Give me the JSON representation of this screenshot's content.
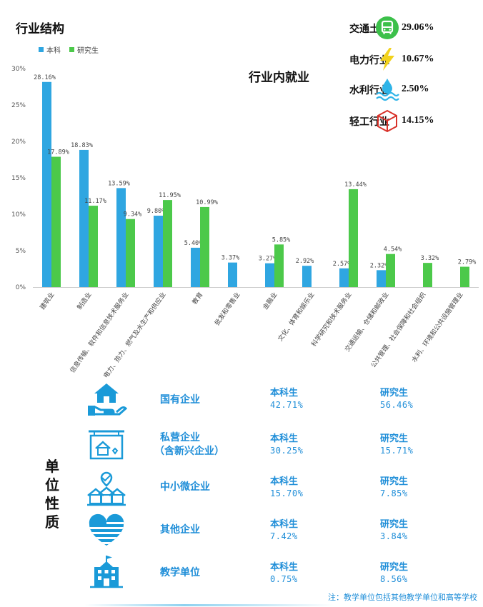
{
  "section_title": "行业结构",
  "colors": {
    "undergrad": "#2fa6e1",
    "graduate": "#4cc94a",
    "accent": "#1f8ed8",
    "axis_text": "#444444"
  },
  "chart_data": {
    "type": "bar",
    "title": "",
    "xlabel": "",
    "ylabel": "",
    "ylim": [
      0,
      30
    ],
    "yticks": [
      "0%",
      "5%",
      "10%",
      "15%",
      "20%",
      "25%",
      "30%"
    ],
    "legend": [
      "本科",
      "研究生"
    ],
    "categories": [
      "建筑业",
      "制造业",
      "信息传输、软件和信息技术服务业",
      "电力、热力、燃气及水生产和供应业",
      "教育",
      "批发和零售业",
      "金融业",
      "文化、体育和娱乐业",
      "科学研究和技术服务业",
      "交通运输、仓储和邮政业",
      "公共管理、社会保障和社会组织",
      "水利、环境和公共设施管理业"
    ],
    "series": [
      {
        "name": "本科",
        "values": [
          28.16,
          18.83,
          13.59,
          9.8,
          5.4,
          3.37,
          3.27,
          2.92,
          2.57,
          2.32,
          null,
          null
        ],
        "labels": [
          "28.16%",
          "18.83%",
          "13.59%",
          "9.80%",
          "5.40%",
          "3.37%",
          "3.27%",
          "2.92%",
          "2.57%",
          "2.32%",
          "",
          ""
        ]
      },
      {
        "name": "研究生",
        "values": [
          17.89,
          11.17,
          9.34,
          11.95,
          10.99,
          null,
          5.85,
          null,
          13.44,
          4.54,
          3.32,
          2.79
        ],
        "labels": [
          "17.89%",
          "11.17%",
          "9.34%",
          "11.95%",
          "10.99%",
          "",
          "5.85%",
          "",
          "13.44%",
          "4.54%",
          "3.32%",
          "2.79%"
        ]
      }
    ]
  },
  "industry_panel": {
    "title": "行业内就业",
    "items": [
      {
        "label": "交通土建",
        "value": "29.06%",
        "icon": "bus-icon"
      },
      {
        "label": "电力行业",
        "value": "10.67%",
        "icon": "lightning-icon"
      },
      {
        "label": "水利行业",
        "value": "2.50%",
        "icon": "water-drop-icon"
      },
      {
        "label": "轻工行业",
        "value": "14.15%",
        "icon": "cube-icon"
      }
    ]
  },
  "unit_nature": {
    "title_chars": [
      "单",
      "位",
      "性",
      "质"
    ],
    "ug_label": "本科生",
    "grad_label": "研究生",
    "rows": [
      {
        "name": "国有企业",
        "sub": "",
        "ug": "42.71%",
        "grad": "56.46%",
        "icon": "house-hand-icon"
      },
      {
        "name": "私营企业",
        "sub": "（含新兴企业）",
        "ug": "30.25%",
        "grad": "15.71%",
        "icon": "storefront-icon"
      },
      {
        "name": "中小微企业",
        "sub": "",
        "ug": "15.70%",
        "grad": "7.85%",
        "icon": "small-houses-icon"
      },
      {
        "name": "其他企业",
        "sub": "",
        "ug": "7.42%",
        "grad": "3.84%",
        "icon": "heart-flag-icon"
      },
      {
        "name": "教学单位",
        "sub": "",
        "ug": "0.75%",
        "grad": "8.56%",
        "icon": "school-building-icon"
      }
    ]
  },
  "note": "注：教学单位包括其他教学单位和高等学校"
}
